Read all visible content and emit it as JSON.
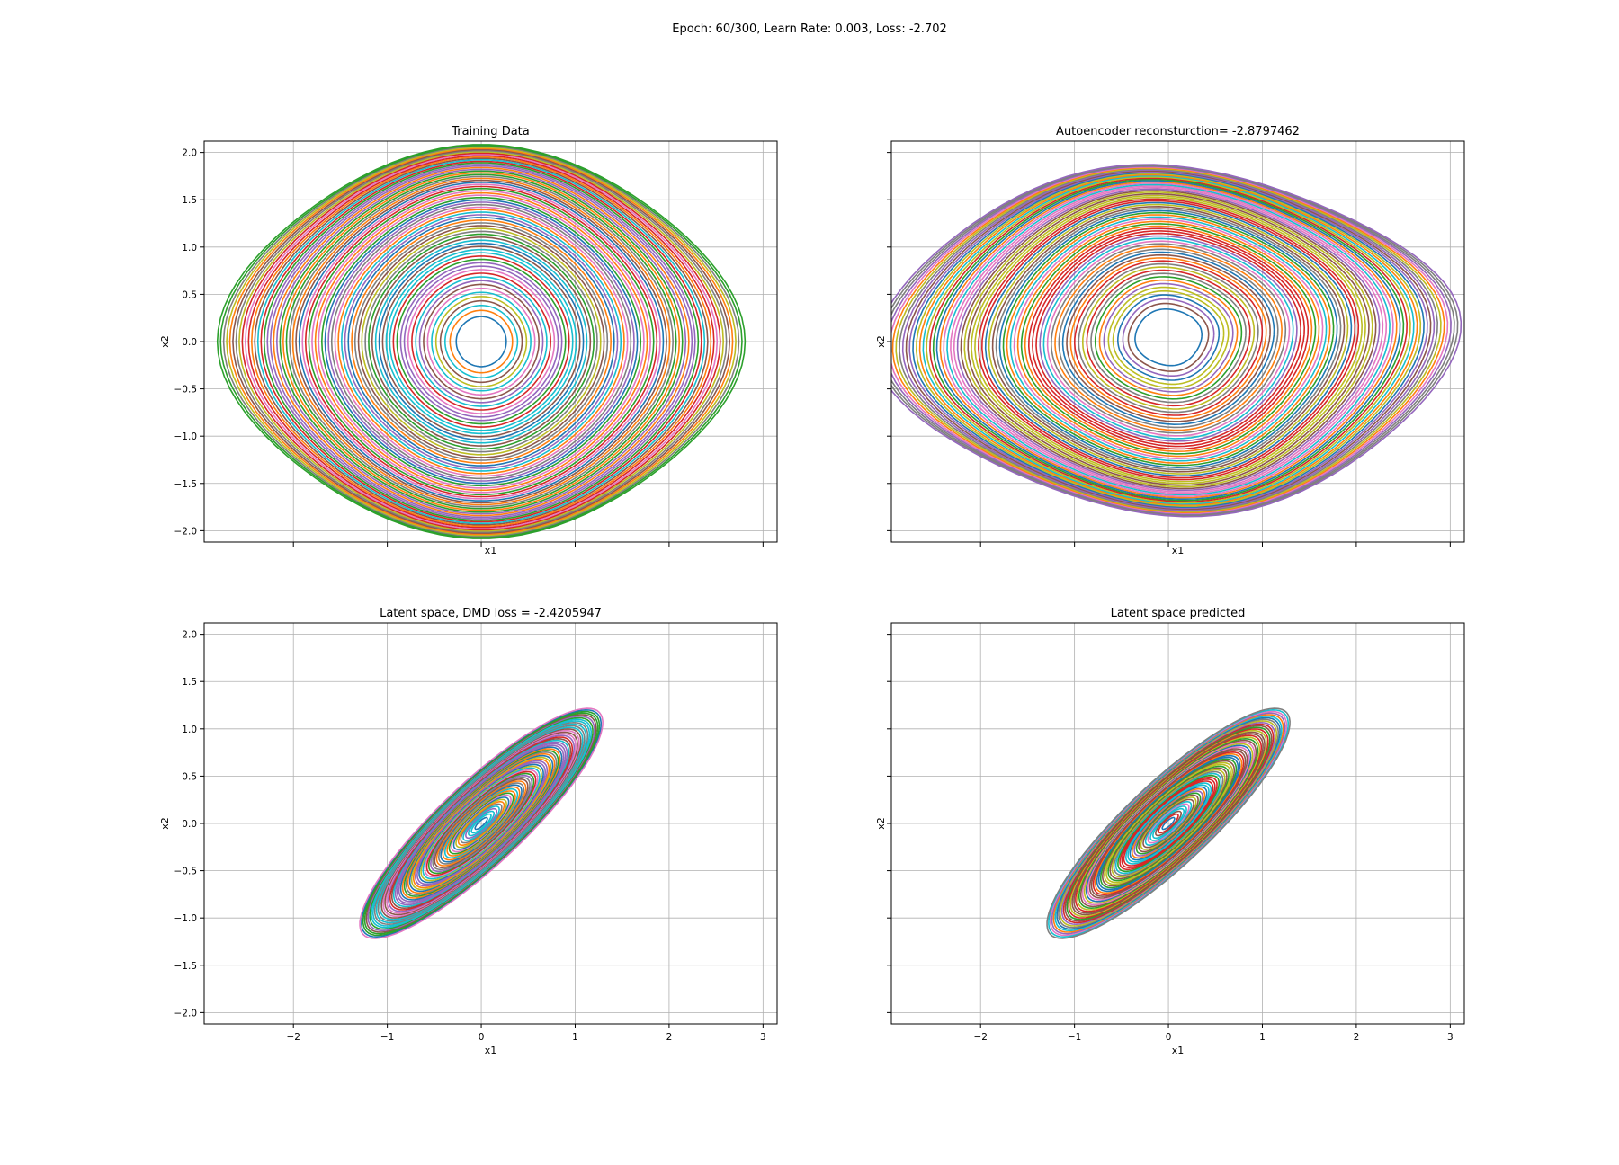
{
  "figure": {
    "suptitle": "Epoch: 60/300, Learn Rate: 0.003, Loss: -2.702"
  },
  "colors": [
    "#1f77b4",
    "#ff7f0e",
    "#2ca02c",
    "#d62728",
    "#9467bd",
    "#8c564b",
    "#e377c2",
    "#7f7f7f",
    "#bcbd22",
    "#17becf"
  ],
  "chart_data": [
    {
      "type": "line",
      "title": "Training Data",
      "xlabel": "x1",
      "ylabel": "x2",
      "xlim": [
        -2.95,
        3.15
      ],
      "ylim": [
        -2.12,
        2.12
      ],
      "xticks": [
        -2,
        -1,
        0,
        1,
        2,
        3
      ],
      "yticks": [
        -2.0,
        -1.5,
        -1.0,
        -0.5,
        0.0,
        0.5,
        1.0,
        1.5,
        2.0
      ],
      "show_xtick_labels": false,
      "show_ytick_labels": true,
      "grid": true,
      "trajectories": {
        "count": 70,
        "shape": "pendulum",
        "center": [
          0,
          0
        ],
        "max_x": 2.65,
        "max_y": 1.93,
        "min_amplitude": 0.1
      }
    },
    {
      "type": "line",
      "title": "Autoencoder reconsturction= -2.8797462",
      "xlabel": "x1",
      "ylabel": "x2",
      "xlim": [
        -2.95,
        3.15
      ],
      "ylim": [
        -2.12,
        2.12
      ],
      "xticks": [
        -2,
        -1,
        0,
        1,
        2,
        3
      ],
      "yticks": [
        -2.0,
        -1.5,
        -1.0,
        -0.5,
        0.0,
        0.5,
        1.0,
        1.5,
        2.0
      ],
      "show_xtick_labels": false,
      "show_ytick_labels": false,
      "grid": true,
      "trajectories": {
        "count": 70,
        "shape": "distorted",
        "center": [
          0,
          0.05
        ],
        "max_x": 2.85,
        "max_y": 1.72,
        "min_amplitude": 0.12
      }
    },
    {
      "type": "line",
      "title": "Latent space, DMD loss = -2.4205947",
      "xlabel": "x1",
      "ylabel": "x2",
      "xlim": [
        -2.95,
        3.15
      ],
      "ylim": [
        -2.12,
        2.12
      ],
      "xticks": [
        -2,
        -1,
        0,
        1,
        2,
        3
      ],
      "yticks": [
        -2.0,
        -1.5,
        -1.0,
        -0.5,
        0.0,
        0.5,
        1.0,
        1.5,
        2.0
      ],
      "show_xtick_labels": true,
      "show_ytick_labels": true,
      "grid": true,
      "trajectories": {
        "count": 60,
        "shape": "ellipse",
        "center": [
          0,
          0
        ],
        "max_x": 1.45,
        "max_y": 1.35,
        "tilt_deg": 43,
        "min_amplitude": 0.05
      }
    },
    {
      "type": "line",
      "title": "Latent space predicted",
      "xlabel": "x1",
      "ylabel": "x2",
      "xlim": [
        -2.95,
        3.15
      ],
      "ylim": [
        -2.12,
        2.12
      ],
      "xticks": [
        -2,
        -1,
        0,
        1,
        2,
        3
      ],
      "yticks": [
        -2.0,
        -1.5,
        -1.0,
        -0.5,
        0.0,
        0.5,
        1.0,
        1.5,
        2.0
      ],
      "show_xtick_labels": true,
      "show_ytick_labels": false,
      "grid": true,
      "trajectories": {
        "count": 60,
        "shape": "ellipse",
        "center": [
          0,
          0
        ],
        "max_x": 1.45,
        "max_y": 1.35,
        "tilt_deg": 43,
        "min_amplitude": 0.05
      }
    }
  ]
}
